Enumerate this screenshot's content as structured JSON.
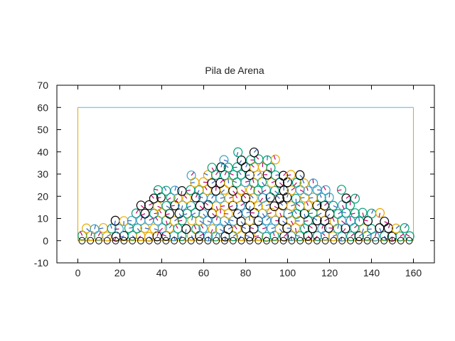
{
  "chart_data": {
    "type": "scatter",
    "title": "Pila de Arena",
    "xlabel": "",
    "ylabel": "",
    "xlim": [
      -10,
      170
    ],
    "ylim": [
      -10,
      70
    ],
    "x_ticks": [
      0,
      20,
      40,
      60,
      80,
      100,
      120,
      140,
      160
    ],
    "y_ticks": [
      -10,
      0,
      10,
      20,
      30,
      40,
      50,
      60,
      70
    ],
    "grid": false,
    "legend": "none",
    "container": {
      "x": [
        0,
        160
      ],
      "y": [
        0,
        60
      ]
    },
    "pile": {
      "x_min": 0,
      "x_max": 160,
      "peak_x": 83,
      "peak_y": 40,
      "grain_radius": 2,
      "grain_spacing": 4
    },
    "colors": {
      "grain_palette": [
        "#000000",
        "#e5a800",
        "#009e73",
        "#3aa0c8"
      ],
      "orientation_line": "#c0006a",
      "container_wall": "#e5a800",
      "container_top": "#56b4e9",
      "axis": "#000000"
    }
  }
}
